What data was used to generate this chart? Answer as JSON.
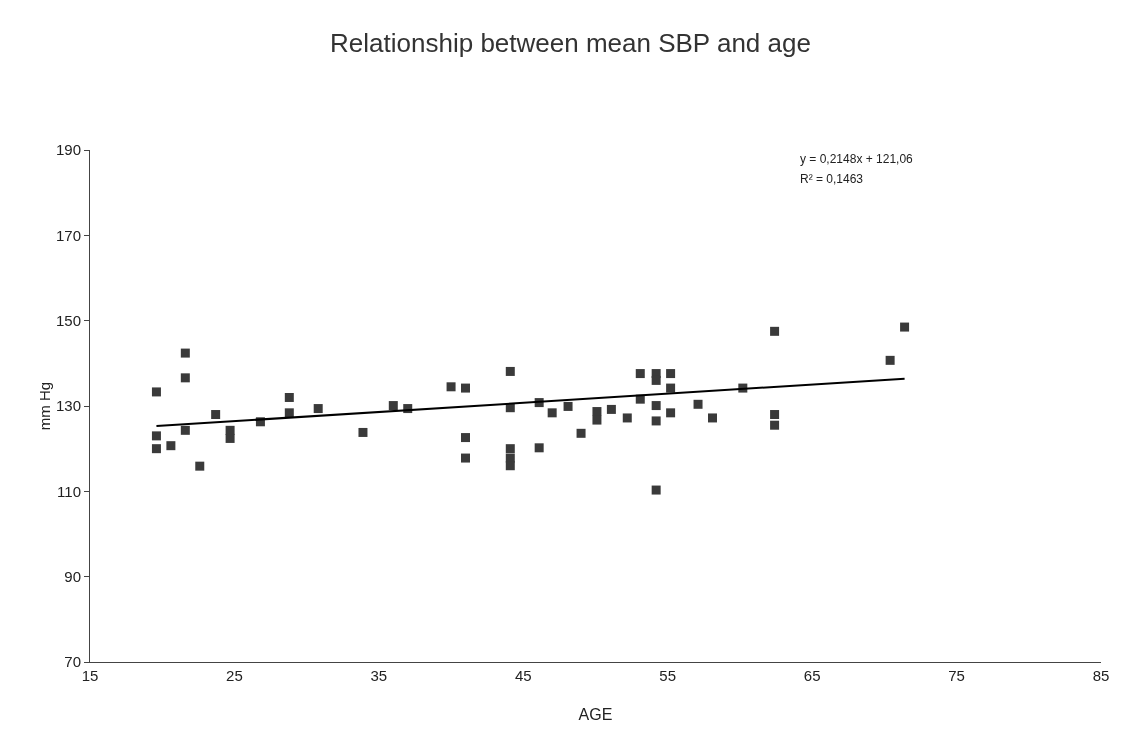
{
  "chart_data": {
    "type": "scatter",
    "title": "Relationship between mean SBP and age",
    "xlabel": "AGE",
    "ylabel": "mm Hg",
    "xlim": [
      15,
      85
    ],
    "xticks": [
      15,
      25,
      35,
      45,
      55,
      65,
      75,
      85
    ],
    "ylim": [
      70,
      190
    ],
    "yticks": [
      70,
      90,
      110,
      130,
      150,
      170,
      190
    ],
    "grid": false,
    "annotations": [
      "y = 0,2148x + 121,06",
      "R² = 0,1463"
    ],
    "series": [
      {
        "marker": "square",
        "color": "#3a3a3a",
        "x": [
          19.6,
          19.6,
          19.6,
          20.6,
          21.6,
          21.6,
          21.6,
          22.6,
          23.7,
          24.7,
          24.7,
          26.8,
          28.8,
          28.8,
          30.8,
          33.9,
          36,
          37,
          40,
          41,
          41,
          41,
          44.1,
          44.1,
          44.1,
          44.1,
          44.1,
          46.1,
          46.1,
          47,
          48.1,
          49,
          50.1,
          50.1,
          51.1,
          52.2,
          53.1,
          53.1,
          54.2,
          54.2,
          54.2,
          54.2,
          54.2,
          55.2,
          55.2,
          55.2,
          57.1,
          58.1,
          60.2,
          62.4,
          62.4,
          62.4,
          70.4,
          71.4
        ],
        "values": [
          133.3,
          123,
          120,
          120.7,
          142.4,
          136.6,
          124.3,
          115.9,
          128,
          124.3,
          122.4,
          126.3,
          132,
          128.4,
          129.4,
          123.8,
          130.1,
          129.4,
          134.5,
          134.2,
          122.6,
          117.8,
          138.1,
          129.6,
          120,
          117.8,
          116,
          130.8,
          120.2,
          128.4,
          129.9,
          123.6,
          128.7,
          126.7,
          129.2,
          127.2,
          137.6,
          131.6,
          137.6,
          136,
          130.1,
          126.5,
          110.3,
          137.6,
          134.2,
          128.4,
          130.4,
          127.2,
          134.2,
          147.5,
          128,
          125.5,
          140.7,
          148.5
        ]
      },
      {
        "type": "line",
        "marker": "none",
        "color": "#000000",
        "line_style": "solid",
        "x": [
          19.6,
          71.4
        ],
        "values": [
          125.3,
          136.4
        ]
      }
    ]
  }
}
